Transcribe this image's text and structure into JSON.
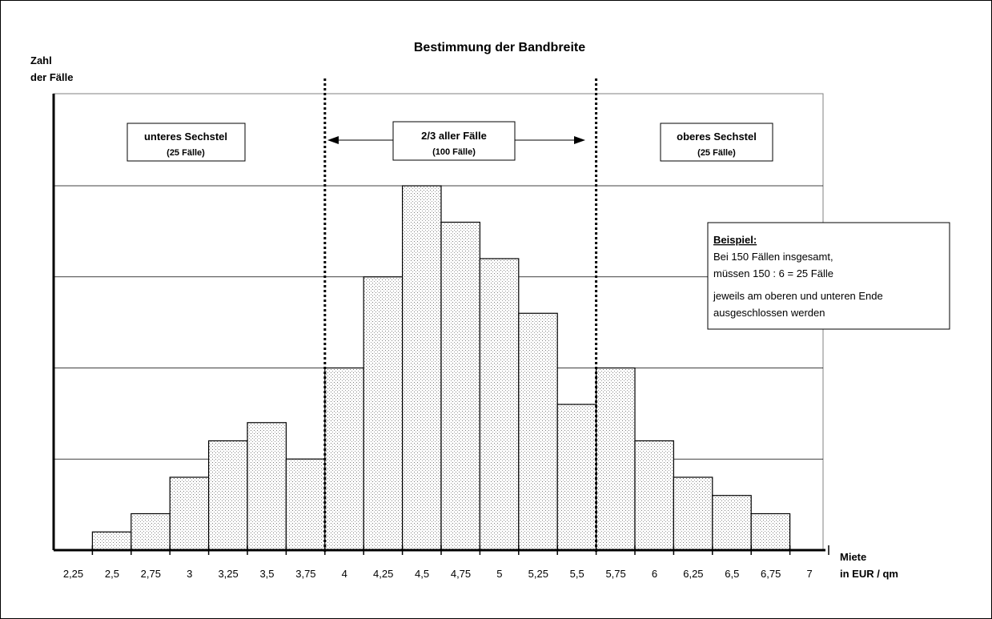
{
  "chart_data": {
    "type": "bar",
    "title": "Bestimmung der Bandbreite",
    "ylabel": [
      "Zahl",
      "der Fälle"
    ],
    "xlabel": [
      "Miete",
      "in EUR / qm"
    ],
    "ylim": [
      0,
      20
    ],
    "grid": true,
    "tick_labels": [
      "2,25",
      "2,5",
      "2,75",
      "3",
      "3,25",
      "3,5",
      "3,75",
      "4",
      "4,25",
      "4,5",
      "4,75",
      "5",
      "5,25",
      "5,5",
      "5,75",
      "6",
      "6,25",
      "6,5",
      "6,75",
      "7"
    ],
    "bins": [
      {
        "from": 2.5,
        "to": 2.75,
        "value": 1
      },
      {
        "from": 2.75,
        "to": 3.0,
        "value": 2
      },
      {
        "from": 3.0,
        "to": 3.25,
        "value": 4
      },
      {
        "from": 3.25,
        "to": 3.5,
        "value": 6
      },
      {
        "from": 3.5,
        "to": 3.75,
        "value": 7
      },
      {
        "from": 3.75,
        "to": 4.0,
        "value": 5
      },
      {
        "from": 4.0,
        "to": 4.25,
        "value": 10
      },
      {
        "from": 4.25,
        "to": 4.5,
        "value": 15
      },
      {
        "from": 4.5,
        "to": 4.75,
        "value": 20
      },
      {
        "from": 4.75,
        "to": 5.0,
        "value": 18
      },
      {
        "from": 5.0,
        "to": 5.25,
        "value": 16
      },
      {
        "from": 5.25,
        "to": 5.5,
        "value": 13
      },
      {
        "from": 5.5,
        "to": 5.75,
        "value": 8
      },
      {
        "from": 5.75,
        "to": 6.0,
        "value": 10
      },
      {
        "from": 6.0,
        "to": 6.25,
        "value": 6
      },
      {
        "from": 6.25,
        "to": 6.5,
        "value": 4
      },
      {
        "from": 6.5,
        "to": 6.75,
        "value": 3
      },
      {
        "from": 6.75,
        "to": 7.0,
        "value": 2
      }
    ],
    "cutoffs": [
      4.0,
      5.75
    ],
    "annotations": {
      "lower": {
        "title": "unteres Sechstel",
        "sub": "(25 Fälle)"
      },
      "middle": {
        "title": "2/3 aller Fälle",
        "sub": "(100 Fälle)"
      },
      "upper": {
        "title": "oberes Sechstel",
        "sub": "(25 Fälle)"
      }
    },
    "example": {
      "heading": "Beispiel:",
      "lines": [
        "Bei 150 Fällen insgesamt,",
        "müssen 150 : 6 = 25 Fälle",
        "jeweils am oberen und unteren Ende",
        "ausgeschlossen werden"
      ]
    }
  }
}
